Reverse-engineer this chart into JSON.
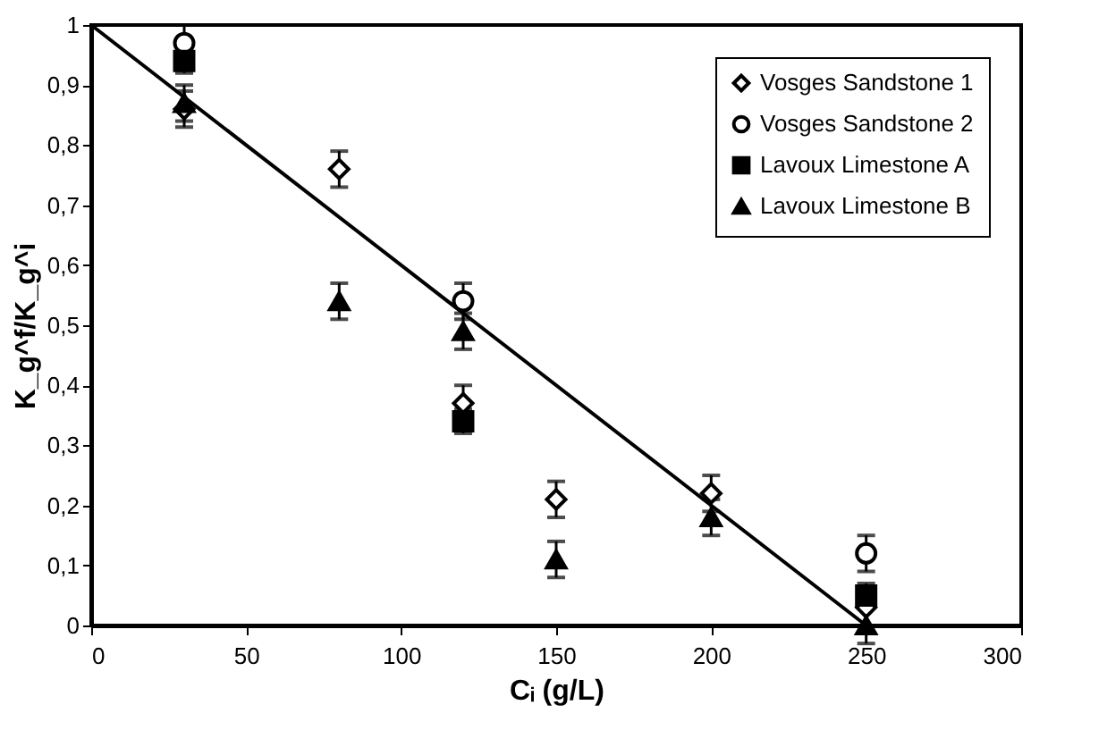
{
  "chart_data": {
    "type": "scatter",
    "xlabel": "Cᵢ (g/L)",
    "ylabel": "K_g^f/K_g^i",
    "xlim": [
      0,
      300
    ],
    "xticks": [
      0,
      50,
      100,
      150,
      200,
      250,
      300
    ],
    "ylim": [
      0,
      1
    ],
    "yticks": [
      0,
      {
        "value": 0.1,
        "label": "0,1"
      },
      {
        "value": 0.2,
        "label": "0,2"
      },
      {
        "value": 0.3,
        "label": "0,3"
      },
      {
        "value": 0.4,
        "label": "0,4"
      },
      {
        "value": 0.5,
        "label": "0,5"
      },
      {
        "value": 0.6,
        "label": "0,6"
      },
      {
        "value": 0.7,
        "label": "0,7"
      },
      {
        "value": 0.8,
        "label": "0,8"
      },
      {
        "value": 0.9,
        "label": "0,9"
      },
      1
    ],
    "grid": false,
    "legend": "top right",
    "series": [
      {
        "name": "Vosges Sandstone 1",
        "color": "#000000",
        "marker": "diamond",
        "x": [
          30,
          80,
          120,
          150,
          200,
          250
        ],
        "values": [
          0.86,
          0.76,
          0.37,
          0.21,
          0.22,
          0.03
        ],
        "errors": [
          0.03,
          0.03,
          0.03,
          0.03,
          0.03,
          0.03
        ]
      },
      {
        "name": "Vosges Sandstone 2",
        "color": "#000000",
        "marker": "circle",
        "x": [
          30,
          120,
          250
        ],
        "values": [
          0.97,
          0.54,
          0.12
        ],
        "errors": [
          0.03,
          0.03,
          0.03
        ]
      },
      {
        "name": "Lavoux Limestone A",
        "color": "#000000",
        "marker": "square",
        "x": [
          30,
          120,
          250
        ],
        "values": [
          0.94,
          0.34,
          0.05
        ],
        "errors": [
          0.02,
          0.02,
          0.02
        ]
      },
      {
        "name": "Lavoux Limestone B",
        "color": "#000000",
        "marker": "triangle",
        "x": [
          30,
          80,
          120,
          150,
          200,
          250
        ],
        "values": [
          0.87,
          0.54,
          0.49,
          0.11,
          0.18,
          0.0
        ],
        "errors": [
          0.03,
          0.03,
          0.03,
          0.03,
          0.03,
          0.03
        ]
      },
      {
        "type": "line",
        "color": "#000000",
        "line_style": "solid",
        "x": [
          0,
          250
        ],
        "values": [
          1,
          0
        ]
      }
    ]
  }
}
